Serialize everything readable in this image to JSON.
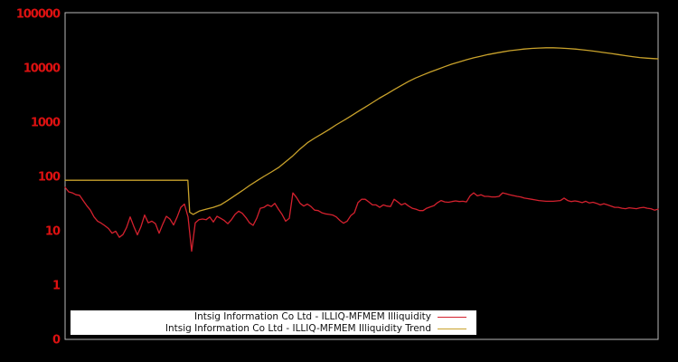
{
  "chart_data": {
    "type": "line",
    "title": "",
    "xlabel": "",
    "ylabel": "",
    "x_axis": {
      "tick_labels_visible": false
    },
    "y_axis": {
      "scale": "symlog",
      "tick_labels": [
        "100000",
        "10000",
        "1000",
        "100",
        "10",
        "1",
        "0"
      ],
      "tick_values": [
        100000,
        10000,
        1000,
        100,
        10,
        1,
        0
      ],
      "label_color": "#dd1111"
    },
    "grid": false,
    "legend": {
      "position": "lower-center-inside",
      "background": "#ffffff",
      "text_color": "#111111"
    },
    "series": [
      {
        "name": "Intsig Information Co Ltd - ILLIQ-MFMEM Illiquidity",
        "color": "#d4212e",
        "sampling": "uniform-x",
        "values": [
          63,
          52,
          50,
          46,
          45,
          36,
          29,
          24,
          18,
          15,
          13.8,
          12.4,
          11,
          9,
          9.8,
          7.6,
          8.5,
          11.5,
          18,
          12,
          8.4,
          12,
          19.5,
          14,
          15,
          13.5,
          9,
          13.2,
          18.5,
          16.5,
          12.8,
          18,
          27,
          31,
          18,
          4.2,
          14,
          16,
          16.5,
          16,
          18,
          14.5,
          18.5,
          17,
          15.5,
          13.5,
          16,
          20,
          23,
          21,
          17.5,
          14,
          12.6,
          17,
          26,
          27,
          30,
          28,
          32,
          25,
          20,
          15,
          17,
          50,
          41,
          32,
          28.5,
          31,
          28,
          24,
          23.5,
          21.5,
          20.5,
          20,
          19.5,
          18,
          15.5,
          13.8,
          15,
          19,
          21.5,
          33,
          38,
          38,
          34,
          30,
          30,
          27,
          30,
          28.5,
          28,
          38,
          34,
          30,
          32,
          28.5,
          26,
          25,
          23.5,
          23.5,
          26,
          27.5,
          29,
          33,
          36,
          34,
          33.5,
          34.5,
          35.5,
          34.5,
          35,
          34,
          44,
          50,
          44,
          46,
          43,
          43,
          42,
          42,
          43,
          50,
          48,
          46,
          44.5,
          43,
          42,
          40,
          39,
          38,
          37,
          36,
          35.5,
          35,
          35,
          35,
          35.5,
          36,
          40,
          36,
          34.5,
          35.5,
          34.5,
          33,
          35,
          32.5,
          33.5,
          32,
          30,
          31.5,
          30,
          28.5,
          27,
          27,
          26,
          25.5,
          26.5,
          26,
          25.5,
          26.5,
          27,
          26,
          25.5,
          24,
          25
        ]
      },
      {
        "name": "Intsig Information Co Ltd - ILLIQ-MFMEM Illiquidity Trend",
        "color": "#c9a22b",
        "points": [
          [
            0,
            85
          ],
          [
            0.207,
            85
          ],
          [
            0.21,
            22
          ],
          [
            0.216,
            20
          ],
          [
            0.226,
            23
          ],
          [
            0.238,
            25
          ],
          [
            0.25,
            27
          ],
          [
            0.262,
            30
          ],
          [
            0.274,
            36
          ],
          [
            0.287,
            45
          ],
          [
            0.299,
            55
          ],
          [
            0.311,
            68
          ],
          [
            0.323,
            83
          ],
          [
            0.335,
            100
          ],
          [
            0.348,
            121
          ],
          [
            0.36,
            146
          ],
          [
            0.372,
            186
          ],
          [
            0.384,
            240
          ],
          [
            0.396,
            320
          ],
          [
            0.409,
            420
          ],
          [
            0.421,
            510
          ],
          [
            0.433,
            610
          ],
          [
            0.445,
            730
          ],
          [
            0.457,
            890
          ],
          [
            0.47,
            1080
          ],
          [
            0.482,
            1300
          ],
          [
            0.494,
            1570
          ],
          [
            0.506,
            1890
          ],
          [
            0.518,
            2280
          ],
          [
            0.53,
            2760
          ],
          [
            0.543,
            3330
          ],
          [
            0.555,
            4000
          ],
          [
            0.567,
            4750
          ],
          [
            0.579,
            5600
          ],
          [
            0.591,
            6500
          ],
          [
            0.604,
            7450
          ],
          [
            0.616,
            8400
          ],
          [
            0.628,
            9400
          ],
          [
            0.64,
            10500
          ],
          [
            0.652,
            11700
          ],
          [
            0.665,
            12900
          ],
          [
            0.677,
            14100
          ],
          [
            0.689,
            15300
          ],
          [
            0.701,
            16400
          ],
          [
            0.713,
            17600
          ],
          [
            0.726,
            18700
          ],
          [
            0.738,
            19700
          ],
          [
            0.75,
            20700
          ],
          [
            0.762,
            21500
          ],
          [
            0.774,
            22200
          ],
          [
            0.787,
            22800
          ],
          [
            0.799,
            23200
          ],
          [
            0.811,
            23450
          ],
          [
            0.823,
            23400
          ],
          [
            0.835,
            23150
          ],
          [
            0.848,
            22750
          ],
          [
            0.86,
            22250
          ],
          [
            0.872,
            21550
          ],
          [
            0.884,
            20800
          ],
          [
            0.896,
            20000
          ],
          [
            0.908,
            19200
          ],
          [
            0.921,
            18400
          ],
          [
            0.933,
            17600
          ],
          [
            0.945,
            16800
          ],
          [
            0.957,
            16100
          ],
          [
            0.969,
            15500
          ],
          [
            0.982,
            15100
          ],
          [
            0.994,
            14800
          ],
          [
            1,
            14700
          ]
        ]
      }
    ]
  },
  "colors": {
    "background": "#000000",
    "frame": "#b9b9b9",
    "tick_label": "#dd1111",
    "legend_background": "#ffffff",
    "legend_text": "#111111",
    "series_illiquidity": "#d4212e",
    "series_trend": "#c9a22b"
  }
}
